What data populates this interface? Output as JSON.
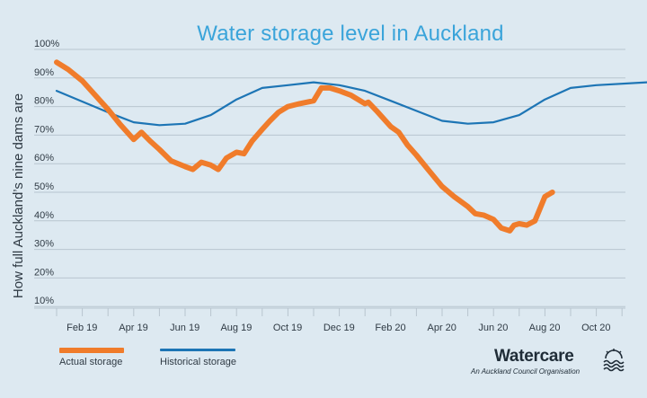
{
  "chart_data": {
    "type": "line",
    "title": "Water storage level in Auckland",
    "ylabel": "How full Auckland’s nine dams are",
    "xlabel": "",
    "ylim": [
      0,
      100
    ],
    "y_ticks": [
      "10%",
      "20%",
      "30%",
      "40%",
      "50%",
      "60%",
      "70%",
      "80%",
      "90%",
      "100%"
    ],
    "x_ticks": [
      "Feb 19",
      "Apr 19",
      "Jun 19",
      "Aug 19",
      "Oct 19",
      "Dec 19",
      "Feb 20",
      "Apr 20",
      "Jun 20",
      "Aug 20",
      "Oct 20"
    ],
    "x_range": [
      "2019-01-01",
      "2020-11-30"
    ],
    "grid": true,
    "legend_position": "bottom-left",
    "series": [
      {
        "name": "Actual storage",
        "color": "#f07c2b",
        "points": [
          [
            "2019-01-01",
            95.5
          ],
          [
            "2019-01-15",
            93
          ],
          [
            "2019-02-01",
            89
          ],
          [
            "2019-02-15",
            84
          ],
          [
            "2019-03-01",
            79
          ],
          [
            "2019-03-15",
            74
          ],
          [
            "2019-04-01",
            68.5
          ],
          [
            "2019-04-10",
            71
          ],
          [
            "2019-04-20",
            68
          ],
          [
            "2019-05-01",
            65
          ],
          [
            "2019-05-15",
            61
          ],
          [
            "2019-06-01",
            59
          ],
          [
            "2019-06-10",
            58
          ],
          [
            "2019-06-20",
            60.5
          ],
          [
            "2019-07-01",
            59.5
          ],
          [
            "2019-07-10",
            58
          ],
          [
            "2019-07-20",
            62
          ],
          [
            "2019-08-01",
            64
          ],
          [
            "2019-08-10",
            63.5
          ],
          [
            "2019-08-20",
            68
          ],
          [
            "2019-09-01",
            72
          ],
          [
            "2019-09-10",
            75
          ],
          [
            "2019-09-20",
            78
          ],
          [
            "2019-10-01",
            80
          ],
          [
            "2019-10-15",
            81
          ],
          [
            "2019-11-01",
            82
          ],
          [
            "2019-11-10",
            86.5
          ],
          [
            "2019-11-20",
            86.5
          ],
          [
            "2019-12-01",
            85.5
          ],
          [
            "2019-12-15",
            84
          ],
          [
            "2020-01-01",
            81
          ],
          [
            "2020-01-05",
            81.5
          ],
          [
            "2020-01-15",
            78.5
          ],
          [
            "2020-02-01",
            73
          ],
          [
            "2020-02-10",
            71
          ],
          [
            "2020-02-20",
            66.5
          ],
          [
            "2020-03-01",
            63
          ],
          [
            "2020-03-15",
            58
          ],
          [
            "2020-04-01",
            52
          ],
          [
            "2020-04-15",
            48.5
          ],
          [
            "2020-05-01",
            45
          ],
          [
            "2020-05-10",
            42.5
          ],
          [
            "2020-05-20",
            42
          ],
          [
            "2020-06-01",
            40.5
          ],
          [
            "2020-06-10",
            37.5
          ],
          [
            "2020-06-20",
            36.5
          ],
          [
            "2020-06-25",
            38.5
          ],
          [
            "2020-07-01",
            39
          ],
          [
            "2020-07-10",
            38.5
          ],
          [
            "2020-07-20",
            40
          ],
          [
            "2020-08-01",
            48.5
          ],
          [
            "2020-08-10",
            50
          ]
        ]
      },
      {
        "name": "Historical storage",
        "color": "#1d75b5",
        "points": [
          [
            "2019-01-01",
            85.5
          ],
          [
            "2019-03-01",
            78
          ],
          [
            "2019-04-01",
            74.5
          ],
          [
            "2019-05-01",
            73.5
          ],
          [
            "2019-06-01",
            74
          ],
          [
            "2019-07-01",
            77
          ],
          [
            "2019-08-01",
            82.5
          ],
          [
            "2019-09-01",
            86.5
          ],
          [
            "2019-10-01",
            87.5
          ],
          [
            "2019-11-01",
            88.5
          ],
          [
            "2019-12-01",
            87.5
          ],
          [
            "2020-01-01",
            85.5
          ],
          [
            "2020-02-01",
            82
          ],
          [
            "2020-03-01",
            78.5
          ],
          [
            "2020-04-01",
            75
          ],
          [
            "2020-05-01",
            74
          ],
          [
            "2020-06-01",
            74.5
          ],
          [
            "2020-07-01",
            77
          ],
          [
            "2020-08-01",
            82.5
          ],
          [
            "2020-09-01",
            86.5
          ],
          [
            "2020-10-01",
            87.5
          ],
          [
            "2020-11-30",
            88.5
          ]
        ]
      }
    ]
  },
  "legend": {
    "actual_label": "Actual storage",
    "historical_label": "Historical storage"
  },
  "branding": {
    "name": "Watercare",
    "tagline": "An Auckland Council Organisation",
    "icon": "waves-sun-icon"
  },
  "colors": {
    "background": "#dde9f1",
    "title": "#3aa4da",
    "grid": "#b8c5cf"
  }
}
